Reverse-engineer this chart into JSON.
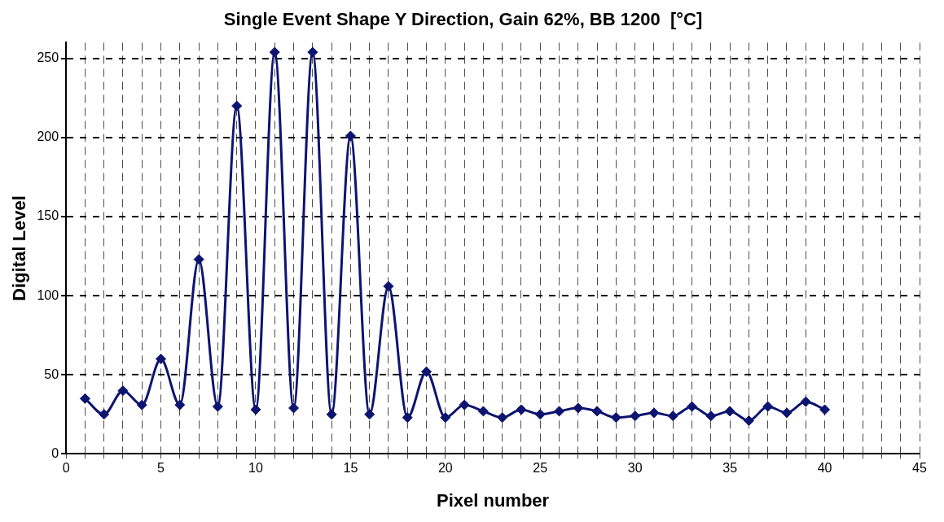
{
  "chart_data": {
    "type": "line",
    "title": "Single Event Shape Y Direction, Gain 62%, BB 1200  [°C]",
    "xlabel": "Pixel number",
    "ylabel": "Digital Level",
    "x": [
      1,
      2,
      3,
      4,
      5,
      6,
      7,
      8,
      9,
      10,
      11,
      12,
      13,
      14,
      15,
      16,
      17,
      18,
      19,
      20,
      21,
      22,
      23,
      24,
      25,
      26,
      27,
      28,
      29,
      30,
      31,
      32,
      33,
      34,
      35,
      36,
      37,
      38,
      39,
      40
    ],
    "series": [
      {
        "color": "#0d1470",
        "values": [
          35,
          25,
          40,
          31,
          60,
          31,
          123,
          30,
          220,
          28,
          254,
          29,
          254,
          25,
          201,
          25,
          106,
          23,
          52,
          23,
          31,
          27,
          23,
          28,
          25,
          27,
          29,
          27,
          23,
          24,
          26,
          24,
          30,
          24,
          27,
          21,
          30,
          26,
          33,
          28
        ]
      }
    ],
    "xlim": [
      0,
      45
    ],
    "xticks": [
      0,
      {
        "value": 1,
        "label": null
      },
      {
        "value": 2,
        "label": null
      },
      {
        "value": 3,
        "label": null
      },
      {
        "value": 4,
        "label": null
      },
      5,
      {
        "value": 6,
        "label": null
      },
      {
        "value": 7,
        "label": null
      },
      {
        "value": 8,
        "label": null
      },
      {
        "value": 9,
        "label": null
      },
      10,
      {
        "value": 11,
        "label": null
      },
      {
        "value": 12,
        "label": null
      },
      {
        "value": 13,
        "label": null
      },
      {
        "value": 14,
        "label": null
      },
      15,
      {
        "value": 16,
        "label": null
      },
      {
        "value": 17,
        "label": null
      },
      {
        "value": 18,
        "label": null
      },
      {
        "value": 19,
        "label": null
      },
      20,
      {
        "value": 21,
        "label": null
      },
      {
        "value": 22,
        "label": null
      },
      {
        "value": 23,
        "label": null
      },
      {
        "value": 24,
        "label": null
      },
      25,
      {
        "value": 26,
        "label": null
      },
      {
        "value": 27,
        "label": null
      },
      {
        "value": 28,
        "label": null
      },
      {
        "value": 29,
        "label": null
      },
      30,
      {
        "value": 31,
        "label": null
      },
      {
        "value": 32,
        "label": null
      },
      {
        "value": 33,
        "label": null
      },
      {
        "value": 34,
        "label": null
      },
      35,
      {
        "value": 36,
        "label": null
      },
      {
        "value": 37,
        "label": null
      },
      {
        "value": 38,
        "label": null
      },
      {
        "value": 39,
        "label": null
      },
      40,
      {
        "value": 41,
        "label": null
      },
      {
        "value": 42,
        "label": null
      },
      {
        "value": 43,
        "label": null
      },
      {
        "value": 44,
        "label": null
      },
      45
    ],
    "ylim": [
      0,
      260
    ],
    "yticks": [
      0,
      50,
      100,
      150,
      200,
      250
    ],
    "grid": true,
    "legend": false,
    "marker": "diamond",
    "line_style": "solid"
  }
}
